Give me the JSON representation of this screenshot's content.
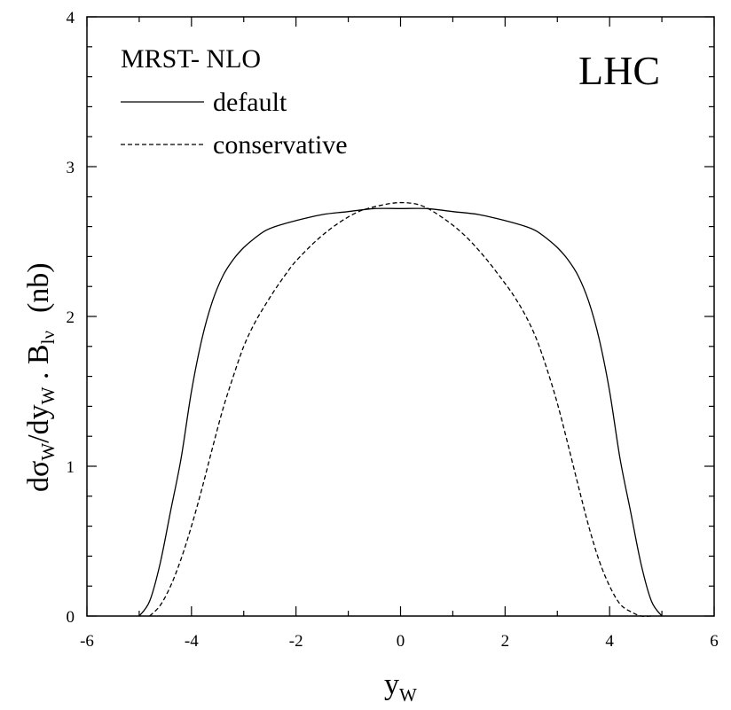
{
  "chart_data": {
    "type": "line",
    "title": "LHC",
    "legend_title": "MRST- NLO",
    "legend_position": "top-left",
    "xlabel": {
      "main": "y",
      "sub": "W"
    },
    "ylabel": {
      "p1": "dσ",
      "s1": "W",
      "p2": "/dy",
      "s2": "W",
      "p3": " . B",
      "s3": "lν",
      "unit": "(nb)"
    },
    "xlim": [
      -6,
      6
    ],
    "ylim": [
      0,
      4
    ],
    "xticks": [
      -6,
      -4,
      -2,
      0,
      2,
      4,
      6
    ],
    "yticks": [
      0,
      1,
      2,
      3,
      4
    ],
    "grid": false,
    "series": [
      {
        "name": "default",
        "style": "solid",
        "color": "#000000",
        "x": [
          -5.0,
          -4.8,
          -4.6,
          -4.4,
          -4.2,
          -4.0,
          -3.8,
          -3.6,
          -3.4,
          -3.2,
          -3.0,
          -2.8,
          -2.6,
          -2.4,
          -2.0,
          -1.5,
          -1.0,
          -0.5,
          0.0,
          0.5,
          1.0,
          1.5,
          2.0,
          2.4,
          2.6,
          2.8,
          3.0,
          3.2,
          3.4,
          3.6,
          3.8,
          4.0,
          4.2,
          4.4,
          4.6,
          4.8,
          5.0
        ],
        "y": [
          0.0,
          0.1,
          0.35,
          0.7,
          1.05,
          1.5,
          1.85,
          2.1,
          2.27,
          2.38,
          2.46,
          2.52,
          2.57,
          2.6,
          2.64,
          2.68,
          2.7,
          2.72,
          2.72,
          2.72,
          2.7,
          2.68,
          2.64,
          2.6,
          2.57,
          2.52,
          2.46,
          2.38,
          2.27,
          2.1,
          1.85,
          1.5,
          1.05,
          0.7,
          0.35,
          0.1,
          0.0
        ]
      },
      {
        "name": "conservative",
        "style": "dashed",
        "color": "#000000",
        "x": [
          -4.8,
          -4.6,
          -4.4,
          -4.2,
          -4.0,
          -3.8,
          -3.6,
          -3.4,
          -3.2,
          -3.0,
          -2.8,
          -2.6,
          -2.4,
          -2.2,
          -2.0,
          -1.6,
          -1.2,
          -0.8,
          -0.4,
          0.0,
          0.4,
          0.8,
          1.2,
          1.6,
          2.0,
          2.2,
          2.4,
          2.6,
          2.8,
          3.0,
          3.2,
          3.4,
          3.6,
          3.8,
          4.0,
          4.2,
          4.4,
          4.6,
          4.8
        ],
        "y": [
          0.0,
          0.07,
          0.2,
          0.38,
          0.6,
          0.85,
          1.12,
          1.38,
          1.6,
          1.8,
          1.95,
          2.07,
          2.18,
          2.28,
          2.37,
          2.51,
          2.62,
          2.7,
          2.74,
          2.76,
          2.74,
          2.66,
          2.55,
          2.4,
          2.22,
          2.12,
          2.0,
          1.85,
          1.65,
          1.42,
          1.15,
          0.87,
          0.6,
          0.37,
          0.2,
          0.08,
          0.03,
          0.0,
          0.0
        ]
      }
    ]
  }
}
